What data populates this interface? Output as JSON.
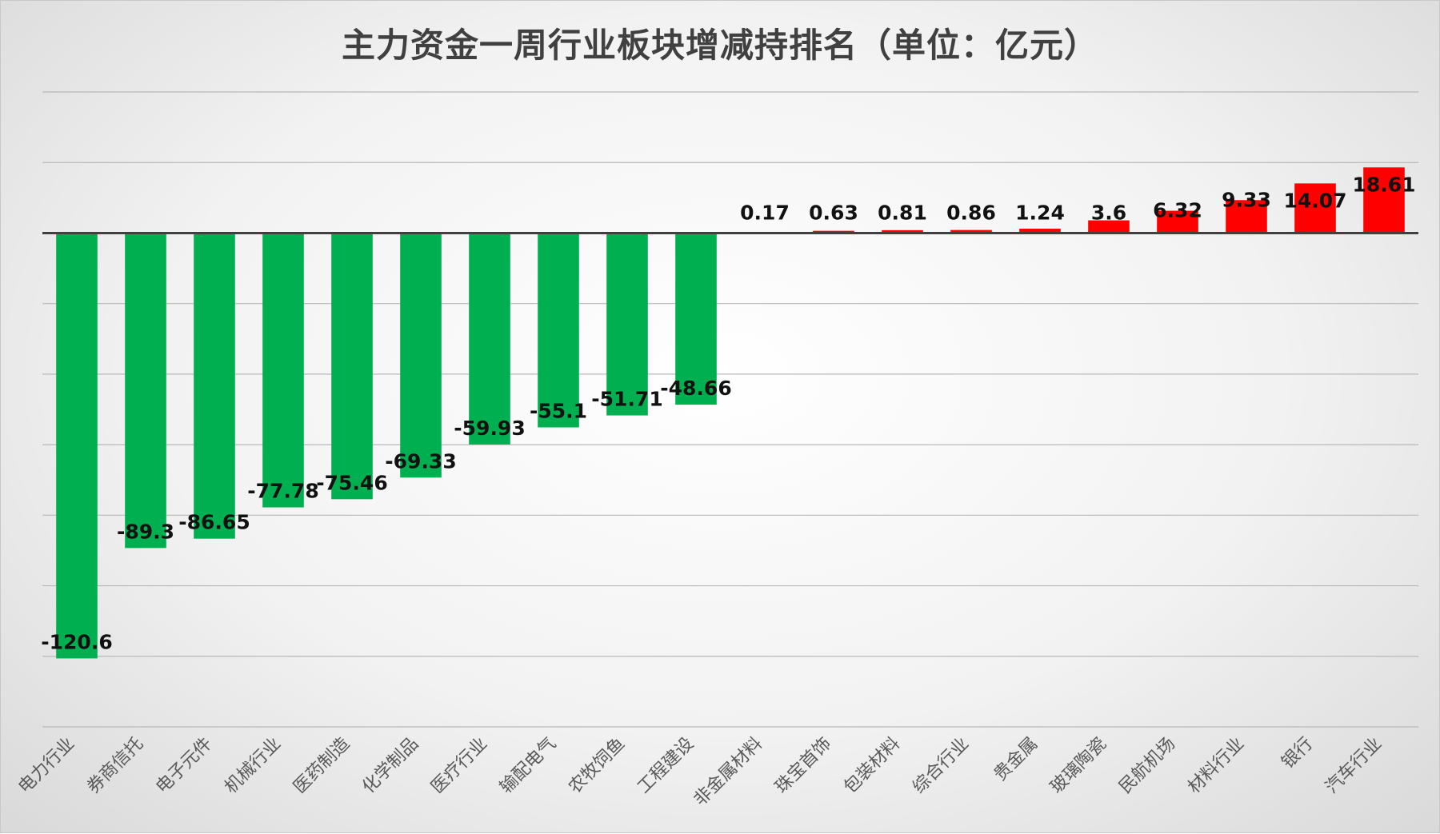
{
  "chart_data": {
    "type": "bar",
    "title": "主力资金一周行业板块增减持排名（单位：亿元）",
    "xlabel": "",
    "ylabel": "",
    "ylim": [
      -140,
      40
    ],
    "grid": true,
    "legend": "none",
    "categories": [
      "电力行业",
      "券商信托",
      "电子元件",
      "机械行业",
      "医药制造",
      "化学制品",
      "医疗行业",
      "输配电气",
      "农牧饲鱼",
      "工程建设",
      "非金属材料",
      "珠宝首饰",
      "包装材料",
      "综合行业",
      "贵金属",
      "玻璃陶瓷",
      "民航机场",
      "材料行业",
      "银行",
      "汽车行业"
    ],
    "values": [
      -120.6,
      -89.3,
      -86.65,
      -77.78,
      -75.46,
      -69.33,
      -59.93,
      -55.1,
      -51.71,
      -48.66,
      0.17,
      0.63,
      0.81,
      0.86,
      1.24,
      3.6,
      6.32,
      9.33,
      14.07,
      18.61
    ],
    "value_labels": [
      "-120.6",
      "-89.3",
      "-86.65",
      "-77.78",
      "-75.46",
      "-69.33",
      "-59.93",
      "-55.1",
      "-51.71",
      "-48.66",
      "0.17",
      "0.63",
      "0.81",
      "0.86",
      "1.24",
      "3.6",
      "6.32",
      "9.33",
      "14.07",
      "18.61"
    ],
    "colors": {
      "negative": "#00b050",
      "positive": "#ff0000",
      "grid": "#b8b8b8",
      "axis": "#404040"
    }
  }
}
